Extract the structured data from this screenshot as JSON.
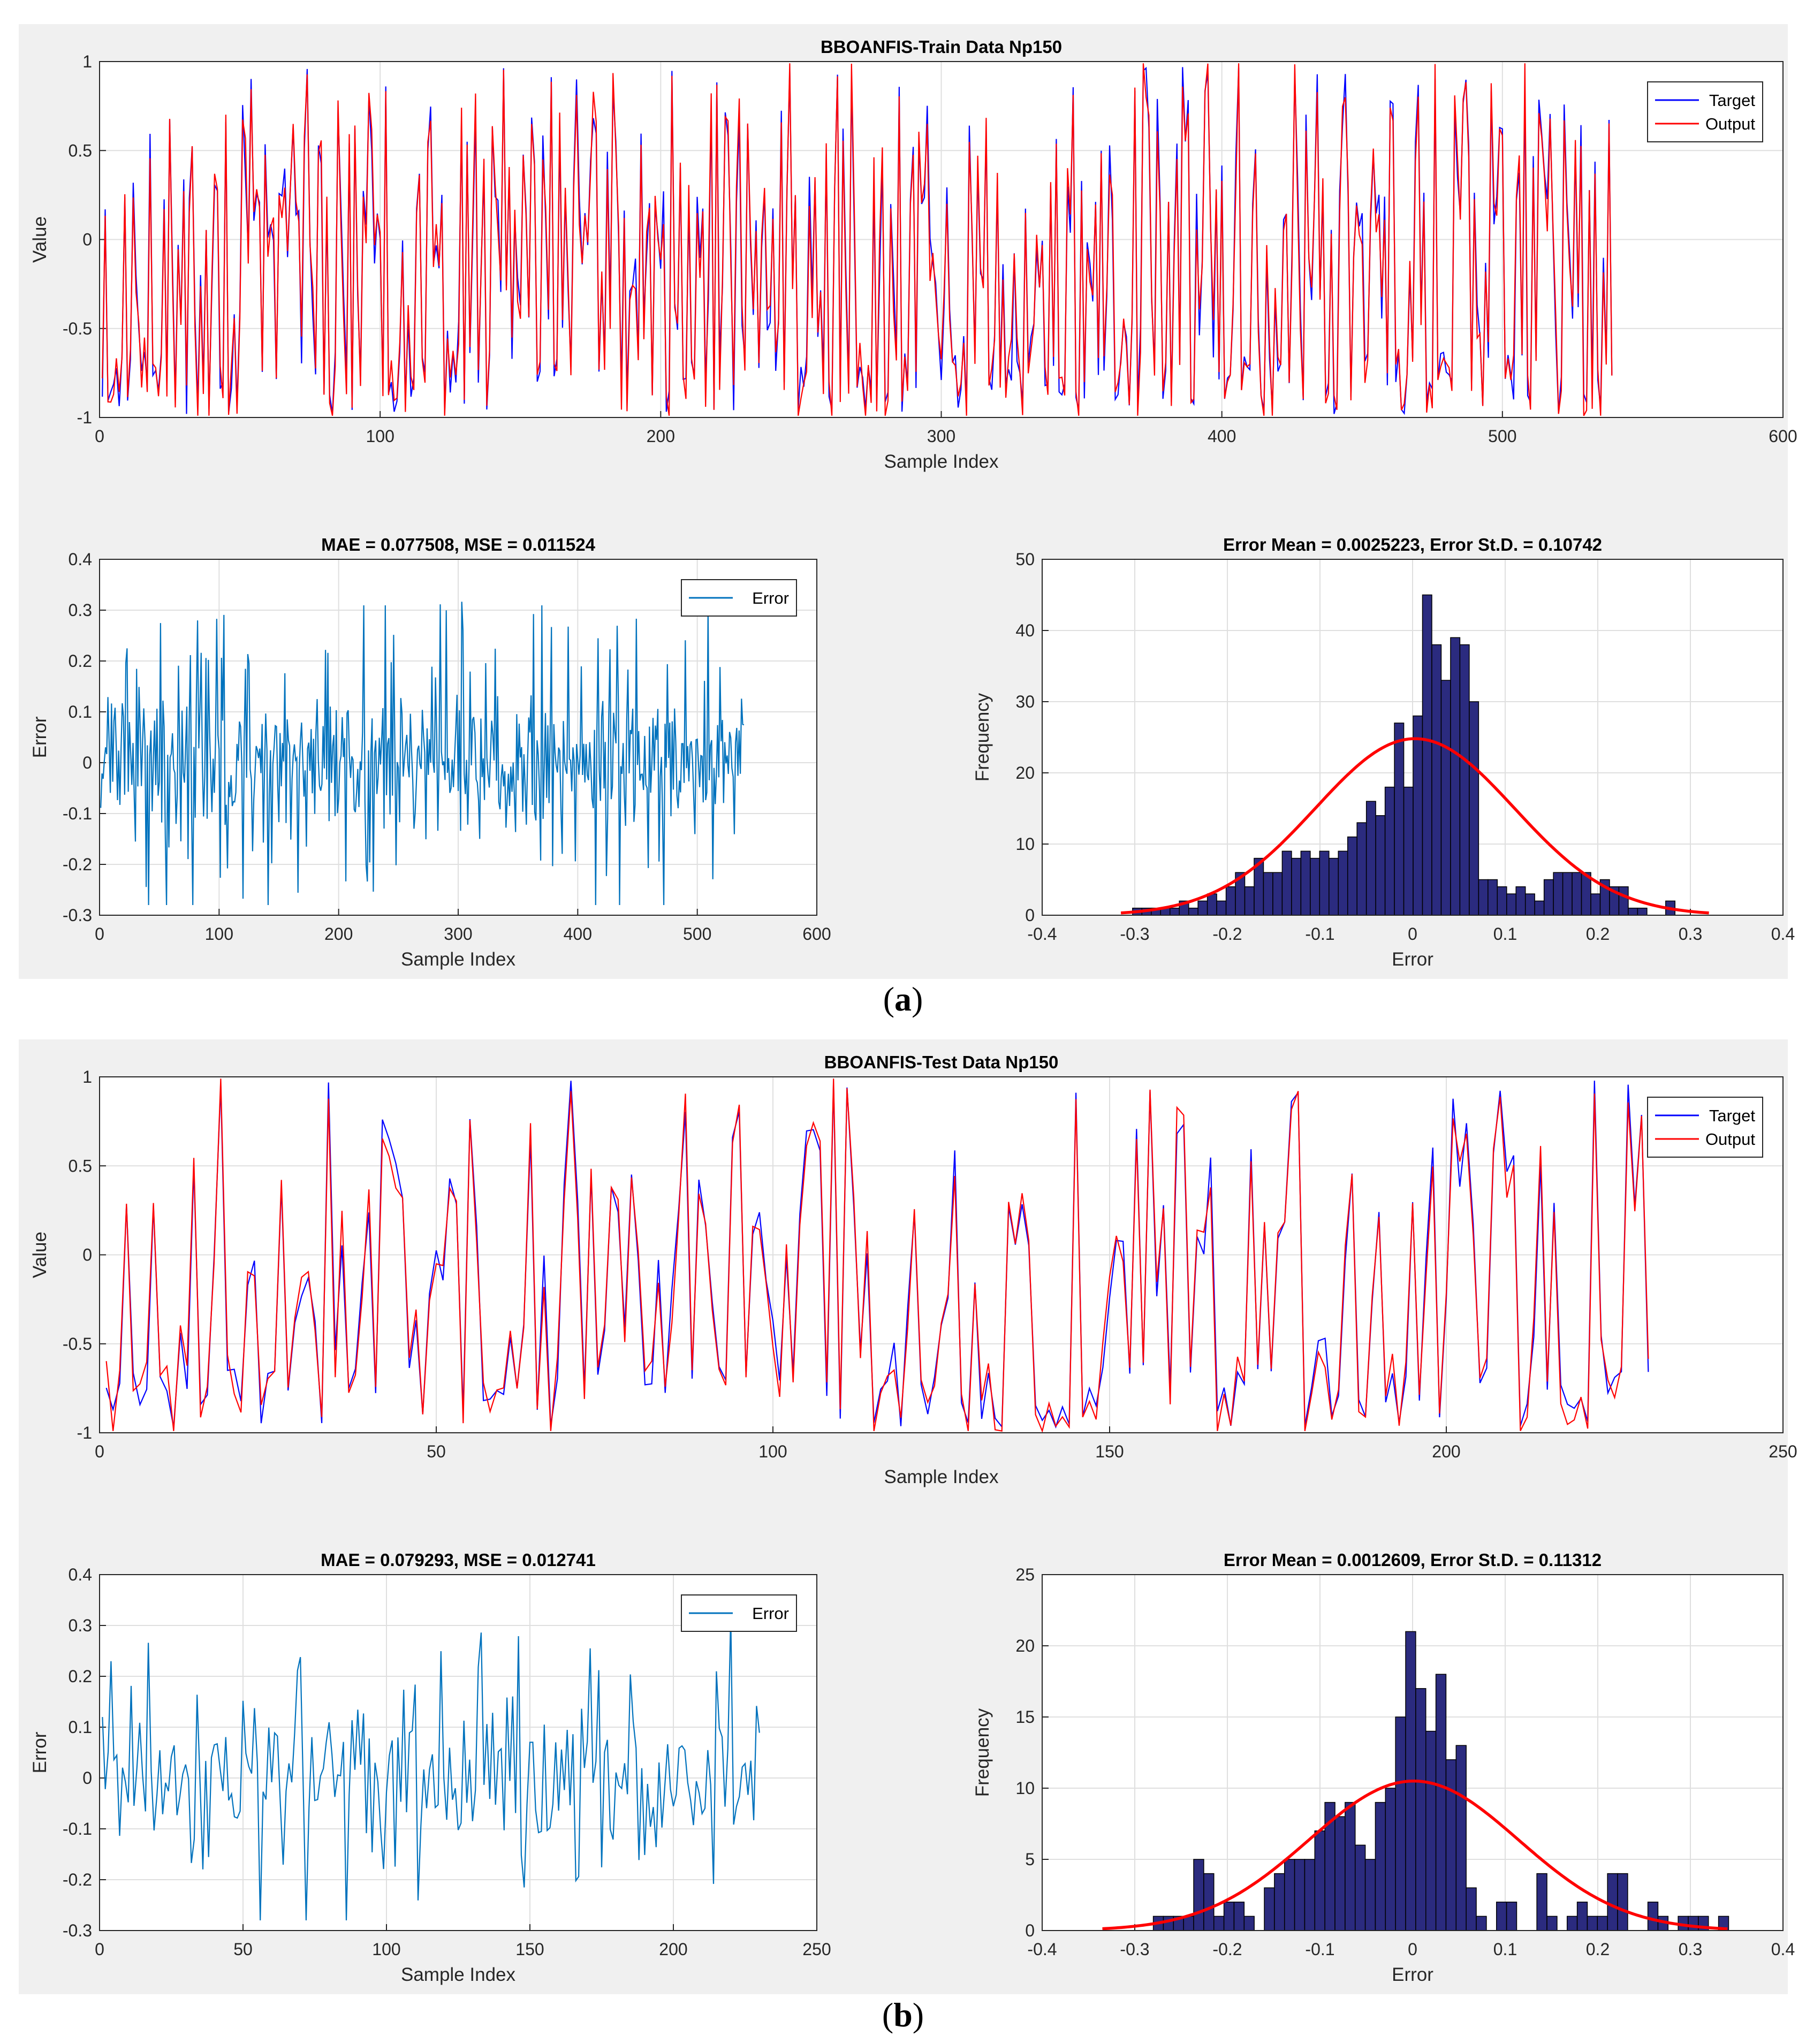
{
  "figure_labels": {
    "a": "a",
    "b": "b"
  },
  "colors": {
    "target": "#0000ff",
    "output": "#ff0000",
    "error": "#0072bd",
    "hist_fill": "#2b2b7f",
    "fit": "#ff0000"
  },
  "chart_data": [
    {
      "id": "a-main",
      "type": "line",
      "title": "BBOANFIS-Train Data Np150",
      "xlabel": "Sample Index",
      "ylabel": "Value",
      "xlim": [
        0,
        600
      ],
      "ylim": [
        -1,
        1
      ],
      "xticks": [
        0,
        100,
        200,
        300,
        400,
        500,
        600
      ],
      "yticks": [
        -1,
        -0.5,
        0,
        0.5,
        1
      ],
      "legend": [
        "Target",
        "Output"
      ],
      "legend_position": "top-right",
      "grid": true,
      "n_points": 539,
      "seed": 11,
      "value_range": [
        -0.98,
        0.97
      ],
      "series": [
        {
          "name": "Target"
        },
        {
          "name": "Output"
        }
      ]
    },
    {
      "id": "a-err",
      "type": "line",
      "title": "MAE = 0.077508, MSE = 0.011524",
      "xlabel": "Sample Index",
      "ylabel": "Error",
      "xlim": [
        0,
        600
      ],
      "ylim": [
        -0.3,
        0.4
      ],
      "xticks": [
        0,
        100,
        200,
        300,
        400,
        500,
        600
      ],
      "yticks": [
        -0.3,
        -0.2,
        -0.1,
        0,
        0.1,
        0.2,
        0.3,
        0.4
      ],
      "legend": [
        "Error"
      ],
      "legend_position": "top-right",
      "grid": true,
      "n_points": 539,
      "seed": 23,
      "error_std": 0.107
    },
    {
      "id": "a-hist",
      "type": "bar",
      "title": "Error Mean = 0.0025223, Error St.D. = 0.10742",
      "xlabel": "Error",
      "ylabel": "Frequency",
      "xlim": [
        -0.4,
        0.4
      ],
      "ylim": [
        0,
        50
      ],
      "xticks": [
        -0.4,
        -0.3,
        -0.2,
        -0.1,
        0,
        0.1,
        0.2,
        0.3,
        0.4
      ],
      "yticks": [
        0,
        10,
        20,
        30,
        40,
        50
      ],
      "grid": true,
      "bin_start": -0.3125,
      "bin_width": 0.0101,
      "values": [
        0,
        1,
        1,
        1,
        1,
        1,
        2,
        1,
        2,
        3,
        2,
        4,
        6,
        4,
        8,
        6,
        6,
        9,
        8,
        9,
        8,
        9,
        8,
        9,
        11,
        13,
        16,
        14,
        18,
        27,
        18,
        28,
        45,
        38,
        33,
        39,
        38,
        30,
        5,
        5,
        4,
        3,
        4,
        3,
        2,
        5,
        6,
        6,
        6,
        6,
        3,
        5,
        4,
        4,
        1,
        1,
        0,
        0,
        2
      ],
      "fit": {
        "mean": 0.0025223,
        "std": 0.10742,
        "peak": 24.8,
        "range": [
          -0.315,
          0.32
        ]
      }
    },
    {
      "id": "b-main",
      "type": "line",
      "title": "BBOANFIS-Test Data Np150",
      "xlabel": "Sample Index",
      "ylabel": "Value",
      "xlim": [
        0,
        250
      ],
      "ylim": [
        -1,
        1
      ],
      "xticks": [
        0,
        50,
        100,
        150,
        200,
        250
      ],
      "yticks": [
        -1,
        -0.5,
        0,
        0.5,
        1
      ],
      "legend": [
        "Target",
        "Output"
      ],
      "legend_position": "top-right",
      "grid": true,
      "n_points": 230,
      "seed": 37,
      "value_range": [
        -0.97,
        0.99
      ],
      "series": [
        {
          "name": "Target"
        },
        {
          "name": "Output"
        }
      ]
    },
    {
      "id": "b-err",
      "type": "line",
      "title": "MAE = 0.079293, MSE = 0.012741",
      "xlabel": "Sample Index",
      "ylabel": "Error",
      "xlim": [
        0,
        250
      ],
      "ylim": [
        -0.3,
        0.4
      ],
      "xticks": [
        0,
        50,
        100,
        150,
        200,
        250
      ],
      "yticks": [
        -0.3,
        -0.2,
        -0.1,
        0,
        0.1,
        0.2,
        0.3,
        0.4
      ],
      "legend": [
        "Error"
      ],
      "legend_position": "top-right",
      "grid": true,
      "n_points": 230,
      "seed": 53,
      "error_std": 0.113
    },
    {
      "id": "b-hist",
      "type": "bar",
      "title": "Error Mean = 0.0012609, Error St.D. = 0.11312",
      "xlabel": "Error",
      "ylabel": "Frequency",
      "xlim": [
        -0.4,
        0.4
      ],
      "ylim": [
        0,
        25
      ],
      "xticks": [
        -0.4,
        -0.3,
        -0.2,
        -0.1,
        0,
        0.1,
        0.2,
        0.3,
        0.4
      ],
      "yticks": [
        0,
        5,
        10,
        15,
        20,
        25
      ],
      "grid": true,
      "bin_start": -0.28,
      "bin_width": 0.0109,
      "values": [
        1,
        1,
        1,
        1,
        5,
        4,
        1,
        2,
        2,
        1,
        0,
        3,
        4,
        5,
        5,
        5,
        7,
        9,
        8,
        9,
        6,
        5,
        9,
        10,
        15,
        21,
        17,
        14,
        18,
        12,
        13,
        3,
        1,
        0,
        2,
        2,
        0,
        0,
        4,
        1,
        0,
        1,
        2,
        1,
        1,
        4,
        4,
        0,
        0,
        2,
        1,
        0,
        1,
        1,
        1,
        0,
        1
      ],
      "fit": {
        "mean": 0.0012609,
        "std": 0.11312,
        "peak": 10.5,
        "range": [
          -0.335,
          0.34
        ]
      }
    }
  ]
}
